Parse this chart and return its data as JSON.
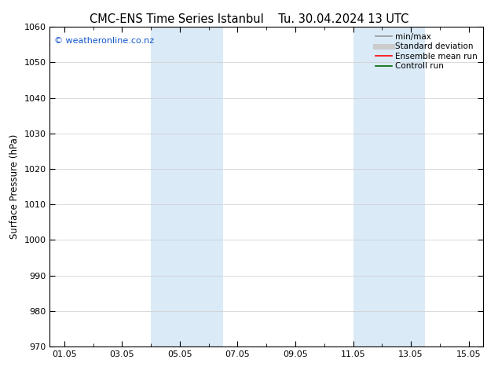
{
  "title": "CMC-ENS Time Series Istanbul",
  "title2": "Tu. 30.04.2024 13 UTC",
  "ylabel": "Surface Pressure (hPa)",
  "ylim": [
    970,
    1060
  ],
  "yticks": [
    970,
    980,
    990,
    1000,
    1010,
    1020,
    1030,
    1040,
    1050,
    1060
  ],
  "xtick_labels": [
    "01.05",
    "03.05",
    "05.05",
    "07.05",
    "09.05",
    "11.05",
    "13.05",
    "15.05"
  ],
  "xtick_positions": [
    0,
    2,
    4,
    6,
    8,
    10,
    12,
    14
  ],
  "xlim": [
    -0.5,
    14.5
  ],
  "shade_bands": [
    {
      "xmin": 3.0,
      "xmax": 4.0
    },
    {
      "xmin": 4.0,
      "xmax": 5.5
    },
    {
      "xmin": 10.0,
      "xmax": 11.0
    },
    {
      "xmin": 11.0,
      "xmax": 12.5
    }
  ],
  "shade_color": "#daeaf7",
  "watermark": "© weatheronline.co.nz",
  "watermark_color": "#1155cc",
  "bg_color": "#ffffff",
  "legend_items": [
    {
      "label": "min/max",
      "color": "#999999",
      "lw": 1.2
    },
    {
      "label": "Standard deviation",
      "color": "#cccccc",
      "lw": 5
    },
    {
      "label": "Ensemble mean run",
      "color": "#ff0000",
      "lw": 1.2
    },
    {
      "label": "Controll run",
      "color": "#006600",
      "lw": 1.2
    }
  ],
  "title_fontsize": 10.5,
  "axis_label_fontsize": 8.5,
  "tick_fontsize": 8,
  "watermark_fontsize": 8,
  "legend_fontsize": 7.5
}
